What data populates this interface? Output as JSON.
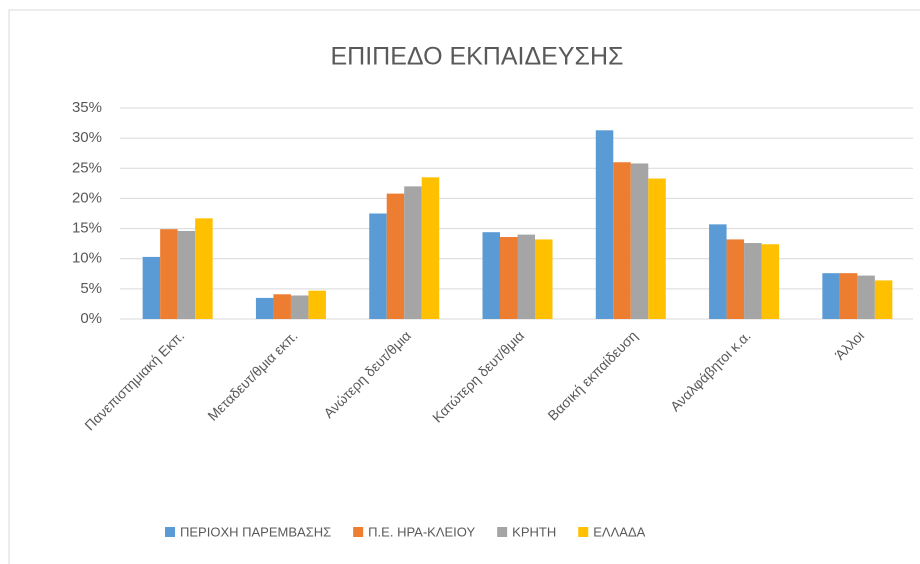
{
  "chart_data": {
    "type": "bar",
    "title": "ΕΠΙΠΕΔΟ ΕΚΠΑΙΔΕΥΣΗΣ",
    "categories": [
      "Πανεπιστημιακή Εκπ.",
      "Μεταδευτ/θμια εκπ.",
      "Ανώτερη δευτ/θμια",
      "Κατώτερη δευτ/θμια",
      "Βασική εκπαίδευση",
      "Αναλφάβητοι κ.α.",
      "Άλλοι"
    ],
    "series": [
      {
        "name": "ΠΕΡΙΟΧΗ ΠΑΡΕΜΒΑΣΗΣ",
        "color": "#5b9bd5",
        "values": [
          10.3,
          3.5,
          17.5,
          14.4,
          31.3,
          15.7,
          7.6
        ]
      },
      {
        "name": "Π.Ε. ΗΡΑ-ΚΛΕΙΟΥ",
        "color": "#ed7d31",
        "values": [
          14.9,
          4.1,
          20.8,
          13.6,
          26.0,
          13.2,
          7.6
        ]
      },
      {
        "name": "ΚΡΗΤΗ",
        "color": "#a5a5a5",
        "values": [
          14.6,
          3.9,
          22.0,
          14.0,
          25.8,
          12.6,
          7.2
        ]
      },
      {
        "name": "ΕΛΛΑΔΑ",
        "color": "#ffc000",
        "values": [
          16.7,
          4.7,
          23.5,
          13.2,
          23.3,
          12.4,
          6.4
        ]
      }
    ],
    "ylim": [
      0,
      35
    ],
    "yticks": [
      {
        "value": 0,
        "label": "0%"
      },
      {
        "value": 5,
        "label": "5%"
      },
      {
        "value": 10,
        "label": "10%"
      },
      {
        "value": 15,
        "label": "15%"
      },
      {
        "value": 20,
        "label": "20%"
      },
      {
        "value": 25,
        "label": "25%"
      },
      {
        "value": 30,
        "label": "30%"
      },
      {
        "value": 35,
        "label": "35%"
      }
    ],
    "grid": true,
    "legend": "bottom"
  }
}
